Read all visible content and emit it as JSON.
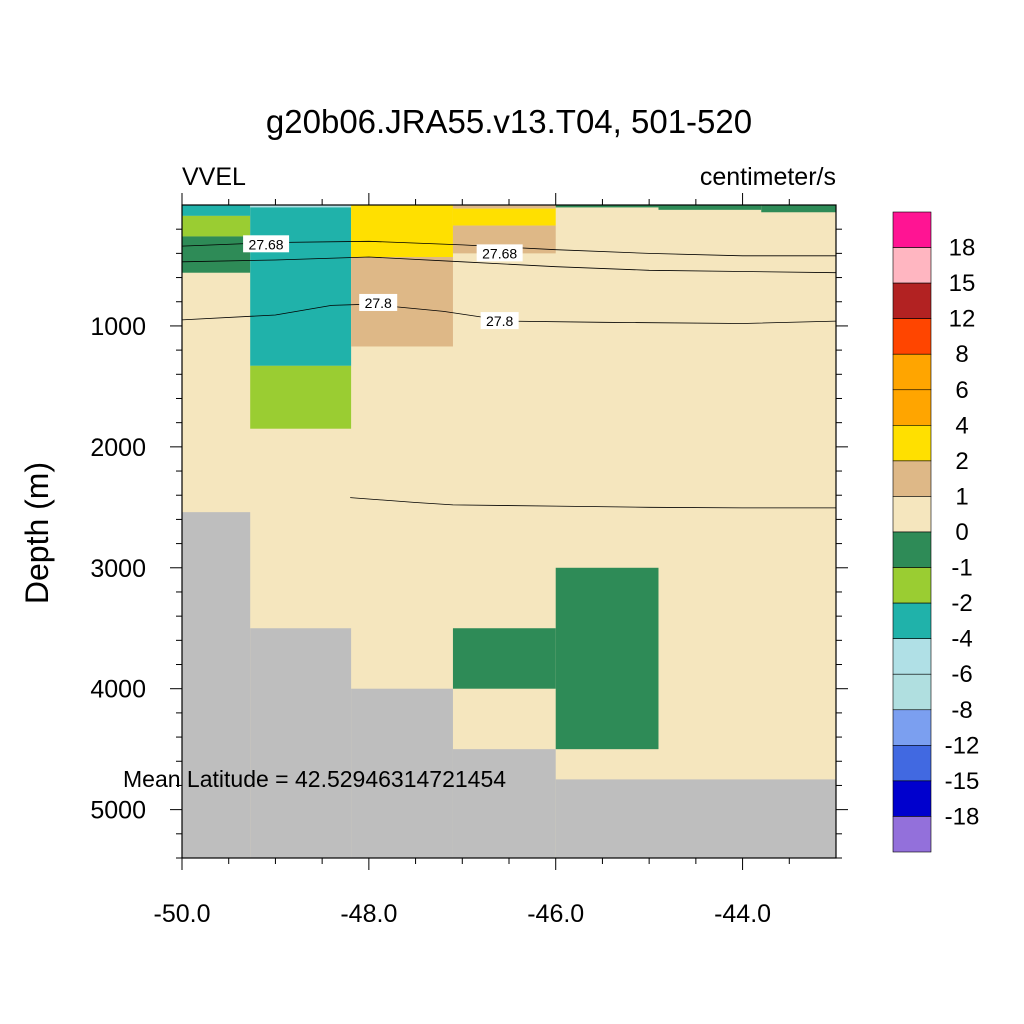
{
  "chart_data": {
    "type": "heatmap",
    "title": "g20b06.JRA55.v13.T04, 501-520",
    "left_string": "VVEL",
    "right_string": "centimeter/s",
    "ylabel": "Depth (m)",
    "xlabel": "",
    "annotation": "Mean Latitude = 42.52946314721454",
    "xlim": [
      -50.0,
      -43.0
    ],
    "ylim": [
      5400,
      0
    ],
    "x_ticks": [
      -50.0,
      -48.0,
      -46.0,
      -44.0
    ],
    "x_tick_labels": [
      "-50.0",
      "-48.0",
      "-46.0",
      "-44.0"
    ],
    "y_ticks": [
      1000,
      2000,
      3000,
      4000,
      5000
    ],
    "y_tick_labels": [
      "1000",
      "2000",
      "3000",
      "4000",
      "5000"
    ],
    "columns": [
      -50.0,
      -49.27,
      -48.19,
      -47.1,
      -46.0,
      -44.9,
      -43.8,
      -43.0
    ],
    "colorbar": {
      "labels": [
        "18",
        "15",
        "12",
        "8",
        "6",
        "4",
        "2",
        "1",
        "0",
        "-1",
        "-2",
        "-4",
        "-6",
        "-8",
        "-12",
        "-15",
        "-18"
      ],
      "colors": [
        "#ff1493",
        "#ffb6c1",
        "#b22222",
        "#ff4500",
        "#ffa500",
        "#ffa500",
        "#ffe000",
        "#deb887",
        "#f5e6be",
        "#2e8b57",
        "#9acd32",
        "#20b2aa",
        "#b0e0e6",
        "#b0dfe0",
        "#7b9ff0",
        "#4169e1",
        "#0000cd",
        "#9370db"
      ]
    },
    "cells": [
      {
        "x0": -50.0,
        "x1": -49.27,
        "d0": 0,
        "d1": 90,
        "color": "#20b2aa"
      },
      {
        "x0": -50.0,
        "x1": -49.27,
        "d0": 90,
        "d1": 260,
        "color": "#9acd32"
      },
      {
        "x0": -50.0,
        "x1": -49.27,
        "d0": 260,
        "d1": 560,
        "color": "#2e8b57"
      },
      {
        "x0": -49.27,
        "x1": -48.19,
        "d0": 0,
        "d1": 20,
        "color": "#b0e0e6"
      },
      {
        "x0": -49.27,
        "x1": -48.19,
        "d0": 20,
        "d1": 1330,
        "color": "#20b2aa"
      },
      {
        "x0": -49.27,
        "x1": -48.19,
        "d0": 1330,
        "d1": 1850,
        "color": "#9acd32"
      },
      {
        "x0": -48.19,
        "x1": -47.1,
        "d0": 0,
        "d1": 430,
        "color": "#ffe000"
      },
      {
        "x0": -48.19,
        "x1": -47.1,
        "d0": 430,
        "d1": 1170,
        "color": "#deb887"
      },
      {
        "x0": -47.1,
        "x1": -46.0,
        "d0": 0,
        "d1": 30,
        "color": "#deb887"
      },
      {
        "x0": -47.1,
        "x1": -46.0,
        "d0": 30,
        "d1": 170,
        "color": "#ffe000"
      },
      {
        "x0": -47.1,
        "x1": -46.0,
        "d0": 170,
        "d1": 400,
        "color": "#deb887"
      },
      {
        "x0": -46.0,
        "x1": -44.9,
        "d0": 0,
        "d1": 20,
        "color": "#2e8b57"
      },
      {
        "x0": -44.9,
        "x1": -43.8,
        "d0": 0,
        "d1": 40,
        "color": "#2e8b57"
      },
      {
        "x0": -43.8,
        "x1": -43.0,
        "d0": 0,
        "d1": 60,
        "color": "#2e8b57"
      },
      {
        "x0": -46.0,
        "x1": -44.9,
        "d0": 3000,
        "d1": 4500,
        "color": "#2e8b57"
      },
      {
        "x0": -47.1,
        "x1": -46.0,
        "d0": 3500,
        "d1": 4000,
        "color": "#2e8b57"
      }
    ],
    "land": [
      {
        "x0": -50.0,
        "x1": -49.27,
        "d0": 2540,
        "d1": 5400
      },
      {
        "x0": -49.27,
        "x1": -48.19,
        "d0": 3500,
        "d1": 5400
      },
      {
        "x0": -48.19,
        "x1": -47.1,
        "d0": 4000,
        "d1": 5400
      },
      {
        "x0": -47.1,
        "x1": -46.0,
        "d0": 4500,
        "d1": 5400
      },
      {
        "x0": -46.0,
        "x1": -43.0,
        "d0": 4750,
        "d1": 5400
      }
    ],
    "land_color": "#bebebe",
    "ocean_color": "#f5e6be",
    "contours": [
      {
        "label": "27.68",
        "points": [
          [
            -50.0,
            340
          ],
          [
            -49.0,
            310
          ],
          [
            -48.0,
            300
          ],
          [
            -47.0,
            330
          ],
          [
            -46.0,
            370
          ],
          [
            -45.0,
            400
          ],
          [
            -44.0,
            420
          ],
          [
            -43.0,
            420
          ]
        ],
        "label_positions": [
          [
            -49.1,
            325
          ],
          [
            -46.6,
            400
          ]
        ]
      },
      {
        "label": "",
        "points": [
          [
            -50.0,
            470
          ],
          [
            -49.0,
            455
          ],
          [
            -48.0,
            430
          ],
          [
            -47.0,
            470
          ],
          [
            -46.0,
            510
          ],
          [
            -45.0,
            540
          ],
          [
            -44.0,
            550
          ],
          [
            -43.0,
            560
          ]
        ],
        "label_positions": []
      },
      {
        "label": "27.8",
        "points": [
          [
            -50.0,
            950
          ],
          [
            -49.0,
            910
          ],
          [
            -48.4,
            830
          ],
          [
            -48.0,
            820
          ],
          [
            -47.2,
            880
          ],
          [
            -46.5,
            960
          ],
          [
            -45.5,
            970
          ],
          [
            -44.0,
            980
          ],
          [
            -43.0,
            960
          ]
        ],
        "label_positions": [
          [
            -47.9,
            810
          ],
          [
            -46.6,
            960
          ]
        ]
      },
      {
        "label": "",
        "points": [
          [
            -48.2,
            2420
          ],
          [
            -47.5,
            2460
          ],
          [
            -47.1,
            2480
          ],
          [
            -46.0,
            2490
          ],
          [
            -45.0,
            2500
          ],
          [
            -44.0,
            2505
          ],
          [
            -43.0,
            2505
          ]
        ],
        "label_positions": []
      }
    ]
  }
}
